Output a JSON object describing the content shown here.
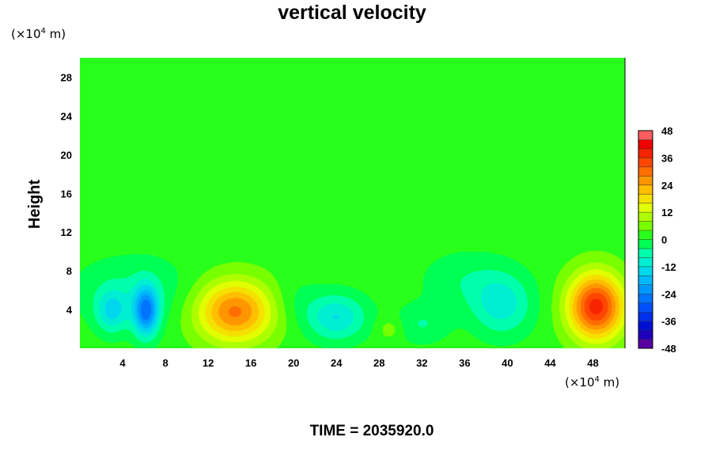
{
  "chart_data": {
    "type": "heatmap",
    "title": "vertical velocity",
    "ylabel": "Height",
    "xlabel": "",
    "x_unit_base": "(×10",
    "x_unit_exp": "4",
    "x_unit_tail": " m)",
    "y_unit_base": "(×10",
    "y_unit_exp": "4",
    "y_unit_tail": " m)",
    "xlim": [
      0,
      51
    ],
    "ylim": [
      0,
      30
    ],
    "x_ticks": [
      4,
      8,
      12,
      16,
      20,
      24,
      28,
      32,
      36,
      40,
      44,
      48
    ],
    "y_ticks": [
      4,
      8,
      12,
      16,
      20,
      24,
      28
    ],
    "colorbar": {
      "range": [
        -48,
        48
      ],
      "step": 4,
      "tick_labels": [
        "48",
        "36",
        "24",
        "12",
        "0",
        "-12",
        "-24",
        "-36",
        "-48"
      ],
      "tick_values": [
        48,
        36,
        24,
        12,
        0,
        -12,
        -24,
        -36,
        -48
      ]
    },
    "background_value": 2,
    "features": [
      {
        "x": 14.5,
        "y": 3.8,
        "sx": 3.6,
        "sy": 3.2,
        "amp": 27
      },
      {
        "x": 48.3,
        "y": 4.3,
        "sx": 2.6,
        "sy": 3.4,
        "amp": 36
      },
      {
        "x": 6.2,
        "y": 3.8,
        "sx": 1.2,
        "sy": 2.6,
        "amp": -26
      },
      {
        "x": 3.0,
        "y": 3.8,
        "sx": 1.5,
        "sy": 2.2,
        "amp": -13
      },
      {
        "x": 5.0,
        "y": 6.0,
        "sx": 5.5,
        "sy": 3.5,
        "amp": -6
      },
      {
        "x": 24.0,
        "y": 3.2,
        "sx": 2.8,
        "sy": 2.4,
        "amp": -14
      },
      {
        "x": 39.5,
        "y": 4.5,
        "sx": 2.8,
        "sy": 3.2,
        "amp": -12
      },
      {
        "x": 36.0,
        "y": 7.0,
        "sx": 4.0,
        "sy": 3.0,
        "amp": -5
      },
      {
        "x": 29.0,
        "y": 2.0,
        "sx": 1.2,
        "sy": 1.2,
        "amp": 5
      },
      {
        "x": 32.0,
        "y": 2.5,
        "sx": 2.5,
        "sy": 2.0,
        "amp": -6
      },
      {
        "x": 20.0,
        "y": 5.0,
        "sx": 2.5,
        "sy": 2.5,
        "amp": -3
      }
    ]
  },
  "footer": {
    "time_label": "TIME = 2035920.0"
  }
}
